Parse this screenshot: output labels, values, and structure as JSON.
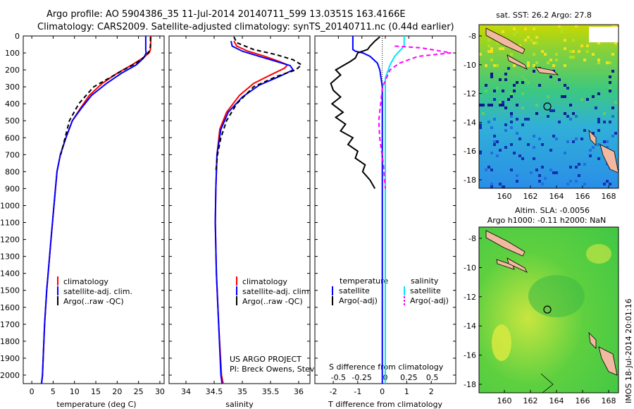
{
  "header": {
    "line1": "Argo profile: AO 5904386_35 11-Jul-2014 20140711_599 13.0351S 163.4166E",
    "line2": "Climatology: CARS2009. Satellite-adjusted climatology: synTS_20140711.nc (0.44d earlier)"
  },
  "colors": {
    "clim": "#ff0000",
    "sat": "#0000ff",
    "argo": "#000000",
    "sat_s": "#00e5ff",
    "argo_s": "#ff00ff",
    "land": "#f2b8a0"
  },
  "chart_data": [
    {
      "type": "line",
      "name": "temperature",
      "xlabel": "temperature (deg C)",
      "xlim": [
        -2,
        31
      ],
      "ylim": [
        0,
        2050
      ],
      "xticks": [
        0,
        5,
        10,
        15,
        20,
        25,
        30
      ],
      "yticks": [
        0,
        100,
        200,
        300,
        400,
        500,
        600,
        700,
        800,
        900,
        1000,
        1100,
        1200,
        1300,
        1400,
        1500,
        1600,
        1700,
        1800,
        1900,
        2000
      ],
      "legend": [
        "climatology",
        "satellite-adj. clim.",
        "Argo(..raw -QC)"
      ],
      "series": [
        {
          "name": "climatology",
          "color": "clim",
          "dash": "",
          "x": [
            27.9,
            27.8,
            27.5,
            26.0,
            23.5,
            20.0,
            16.5,
            13.5,
            11.3,
            9.5,
            8.0,
            6.7,
            5.9,
            5.2,
            4.5,
            3.5,
            3.0,
            2.5,
            2.25
          ],
          "y": [
            0,
            80,
            100,
            130,
            170,
            220,
            280,
            350,
            430,
            500,
            600,
            700,
            800,
            1000,
            1200,
            1500,
            1700,
            2000,
            2050
          ]
        },
        {
          "name": "satellite-adj. clim.",
          "color": "sat",
          "dash": "",
          "x": [
            26.7,
            26.7,
            26.8,
            26.2,
            24.5,
            21.0,
            17.5,
            14.0,
            11.5,
            9.5,
            8.0,
            6.7,
            5.9,
            5.2,
            4.5,
            3.5,
            3.0,
            2.5,
            2.3
          ],
          "y": [
            0,
            85,
            100,
            130,
            170,
            220,
            280,
            350,
            430,
            500,
            600,
            700,
            800,
            1000,
            1200,
            1500,
            1700,
            2000,
            2050
          ]
        },
        {
          "name": "Argo(..raw -QC)",
          "color": "argo",
          "dash": "6,4",
          "x": [
            27.8,
            27.8,
            27.5,
            26.5,
            24.5,
            21.5,
            18.0,
            14.5,
            11.0,
            8.8,
            7.8,
            6.8
          ],
          "y": [
            5,
            60,
            90,
            120,
            160,
            200,
            250,
            300,
            400,
            500,
            600,
            700
          ]
        }
      ]
    },
    {
      "type": "line",
      "name": "salinity",
      "xlabel": "salinity",
      "xlim": [
        33.7,
        36.2
      ],
      "ylim": [
        0,
        2050
      ],
      "xticks": [
        34,
        34.5,
        35,
        35.5,
        36
      ],
      "xticklabels": [
        "34",
        "34.5",
        "35",
        "35.5",
        "36"
      ],
      "legend": [
        "climatology",
        "satellite-adj. clim.",
        "Argo(..raw -QC)"
      ],
      "annotation": [
        "US ARGO PROJECT",
        "PI: Breck Owens, Steve Jayne, and P.E. Robbi"
      ],
      "series": [
        {
          "name": "climatology",
          "color": "clim",
          "dash": "",
          "x": [
            34.85,
            34.9,
            35.1,
            35.4,
            35.65,
            35.8,
            35.75,
            35.5,
            35.2,
            34.95,
            34.72,
            34.6,
            34.55,
            34.53,
            34.52,
            34.54,
            34.58,
            34.63,
            34.66
          ],
          "y": [
            30,
            60,
            90,
            120,
            150,
            170,
            190,
            230,
            280,
            350,
            450,
            550,
            700,
            900,
            1100,
            1400,
            1700,
            2000,
            2050
          ]
        },
        {
          "name": "satellite-adj. clim.",
          "color": "sat",
          "dash": "",
          "x": [
            34.8,
            34.82,
            35.0,
            35.3,
            35.6,
            35.85,
            35.9,
            35.65,
            35.3,
            35.0,
            34.75,
            34.62,
            34.55,
            34.53,
            34.52,
            34.54,
            34.58,
            34.62,
            34.64
          ],
          "y": [
            30,
            60,
            90,
            120,
            150,
            175,
            200,
            240,
            290,
            360,
            450,
            550,
            700,
            900,
            1100,
            1400,
            1700,
            2000,
            2050
          ]
        },
        {
          "name": "Argo(..raw -QC)",
          "color": "argo",
          "dash": "6,4",
          "x": [
            34.85,
            34.9,
            35.2,
            35.6,
            35.9,
            36.05,
            35.95,
            35.6,
            35.2,
            34.9,
            34.72,
            34.62,
            34.56,
            34.53
          ],
          "y": [
            5,
            40,
            80,
            110,
            140,
            170,
            200,
            240,
            300,
            400,
            500,
            600,
            700,
            800
          ]
        }
      ]
    },
    {
      "type": "line",
      "name": "difference",
      "xlabel": "T difference from climatology",
      "title_inside": "S difference from climatology",
      "xlim_S": [
        -0.75,
        0.75
      ],
      "xlim_T": [
        -2.75,
        3.0
      ],
      "ticks_S": [
        -0.5,
        -0.25,
        0,
        0.25,
        0.5
      ],
      "ticklabels_S": [
        "-0.5",
        "-0.25",
        "0",
        "0.25",
        "0.5"
      ],
      "ticks_T": [
        -2,
        -1,
        0,
        1,
        2
      ],
      "legend_T_heading": "temperature",
      "legend_S_heading": "salinity",
      "legend": [
        "satellite",
        "Argo(-adj)",
        "satellite",
        "Argo(-adj)"
      ],
      "series": [
        {
          "name": "T satellite",
          "axis": "T",
          "color": "sat",
          "dash": "",
          "x": [
            -1.2,
            -1.2,
            -1.1,
            -0.8,
            -0.5,
            -0.2,
            -0.1,
            0,
            0,
            0,
            0
          ],
          "y": [
            0,
            80,
            90,
            100,
            120,
            160,
            200,
            300,
            600,
            1200,
            2050
          ]
        },
        {
          "name": "T Argo(-adj)",
          "axis": "T",
          "color": "argo",
          "dash": "",
          "x": [
            -0.1,
            -0.3,
            -0.5,
            -0.6,
            -1.0,
            -1.1,
            -1.3,
            -1.9,
            -1.7,
            -2.1,
            -2.0,
            -1.7,
            -2.05,
            -1.6,
            -1.9,
            -1.5,
            -1.7,
            -1.2,
            -1.4,
            -1.0,
            -1.1,
            -0.7,
            -0.8,
            -0.5,
            -0.3
          ],
          "y": [
            5,
            30,
            60,
            80,
            100,
            130,
            150,
            200,
            230,
            280,
            320,
            360,
            400,
            450,
            480,
            520,
            560,
            600,
            640,
            680,
            720,
            760,
            800,
            850,
            900
          ]
        },
        {
          "name": "S satellite",
          "axis": "S",
          "color": "sat_s",
          "dash": "",
          "x": [
            0.2,
            0.2,
            0.15,
            0.1,
            0.05,
            0.0,
            0.0,
            0.0
          ],
          "y": [
            0,
            60,
            90,
            120,
            170,
            250,
            800,
            2050
          ]
        },
        {
          "name": "S Argo(-adj)",
          "axis": "S",
          "color": "argo_s",
          "dash": "6,4",
          "x": [
            0.1,
            0.38,
            0.7,
            0.35,
            0.15,
            0.05,
            -0.03,
            -0.07,
            -0.06,
            -0.02,
            0.0
          ],
          "y": [
            60,
            70,
            100,
            120,
            160,
            200,
            300,
            500,
            600,
            760,
            900
          ]
        }
      ]
    }
  ],
  "maps": {
    "sst": {
      "title": "sat. SST: 26.2 Argo: 27.8",
      "yticks": [
        "-8",
        "-10",
        "-12",
        "-14",
        "-16",
        "-18"
      ],
      "xticks": [
        "160",
        "162",
        "164",
        "166",
        "168"
      ]
    },
    "sla": {
      "title1": "Altim. SLA: -0.0056",
      "title2": "Argo h1000: -0.11 h2000: NaN",
      "yticks": [
        "-8",
        "-10",
        "-12",
        "-14",
        "-16",
        "-18"
      ],
      "xticks": [
        "160",
        "162",
        "164",
        "166",
        "168"
      ]
    }
  },
  "watermark": "IMOS 18-Jul-2014 20:01:16"
}
